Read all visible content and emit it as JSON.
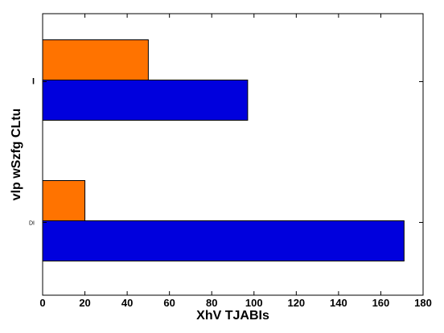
{
  "chart_data": {
    "type": "bar",
    "orientation": "horizontal",
    "xlabel": "XhV TJABIs",
    "ylabel": "vlp wSzfg CLtu",
    "xlim": [
      0,
      180
    ],
    "xticks": [
      "0",
      "20",
      "40",
      "60",
      "80",
      "100",
      "120",
      "140",
      "160",
      "180"
    ],
    "categories": [
      "DI",
      "I"
    ],
    "series": [
      {
        "color": "#0000dd",
        "values": [
          171,
          97
        ]
      },
      {
        "color": "#ff7300",
        "values": [
          20,
          50
        ]
      }
    ],
    "grid": false
  }
}
